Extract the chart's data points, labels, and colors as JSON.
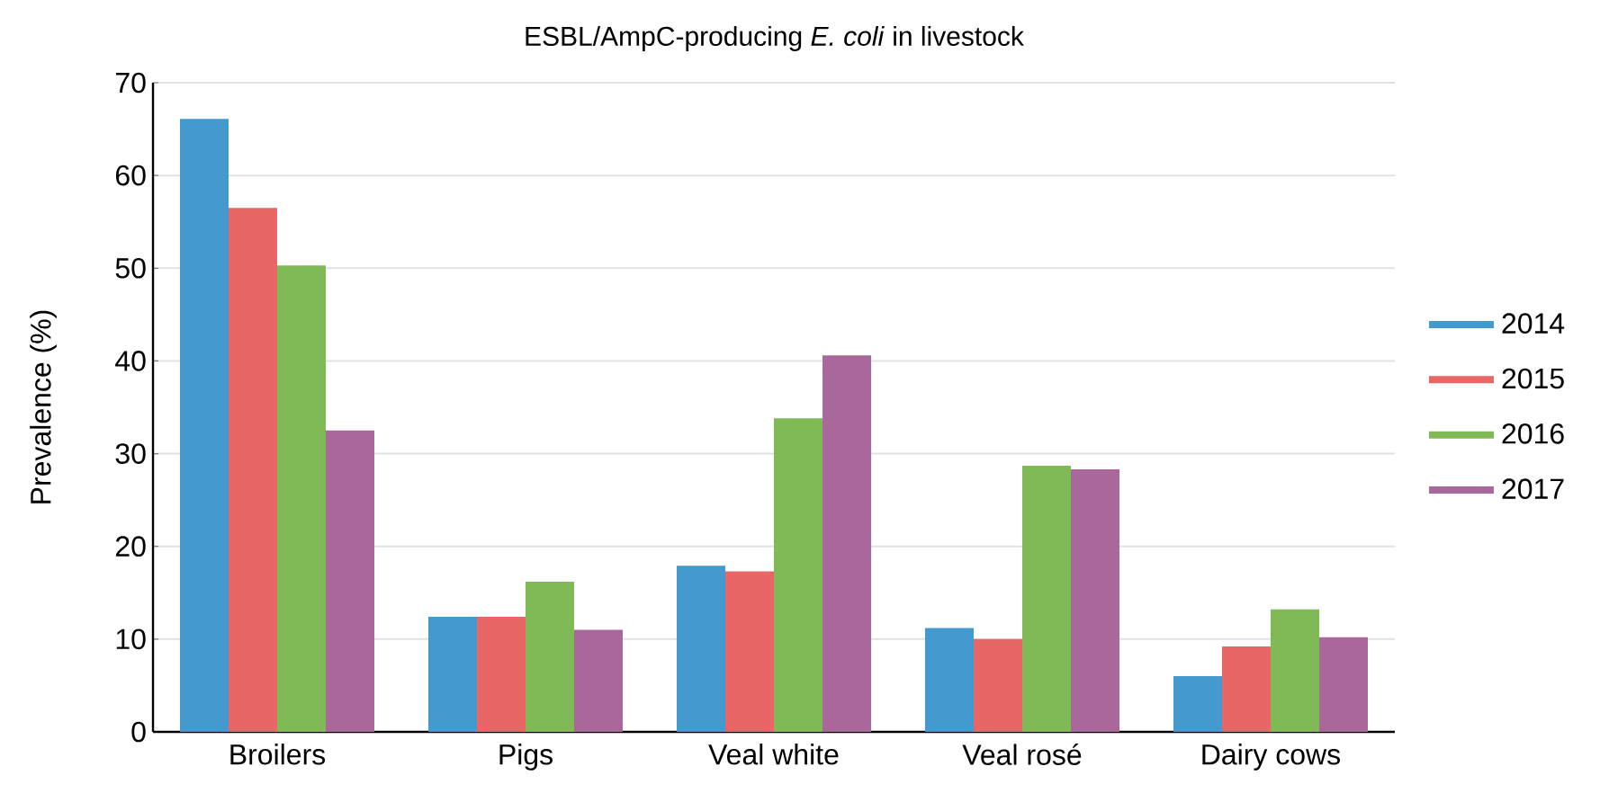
{
  "chart_data": {
    "type": "bar",
    "title": "ESBL/AmpC-producing *E. coli* in livestock",
    "ylabel": "Prevalence (%)",
    "categories": [
      "Broilers",
      "Pigs",
      "Veal white",
      "Veal rosé",
      "Dairy cows"
    ],
    "series": [
      {
        "name": "2014",
        "color": "#4499cf",
        "values": [
          66.1,
          12.4,
          17.9,
          11.2,
          6.0
        ]
      },
      {
        "name": "2015",
        "color": "#e86666",
        "values": [
          56.5,
          12.4,
          17.3,
          10.0,
          9.2
        ]
      },
      {
        "name": "2016",
        "color": "#7fba57",
        "values": [
          50.3,
          16.2,
          33.8,
          28.7,
          13.2
        ]
      },
      {
        "name": "2017",
        "color": "#aa679b",
        "values": [
          32.5,
          11.0,
          40.6,
          28.3,
          10.2
        ]
      }
    ],
    "ylim": [
      0,
      70
    ],
    "yticks": [
      0,
      10,
      20,
      30,
      40,
      50,
      60,
      70
    ],
    "grid": "y",
    "legend": "right"
  }
}
